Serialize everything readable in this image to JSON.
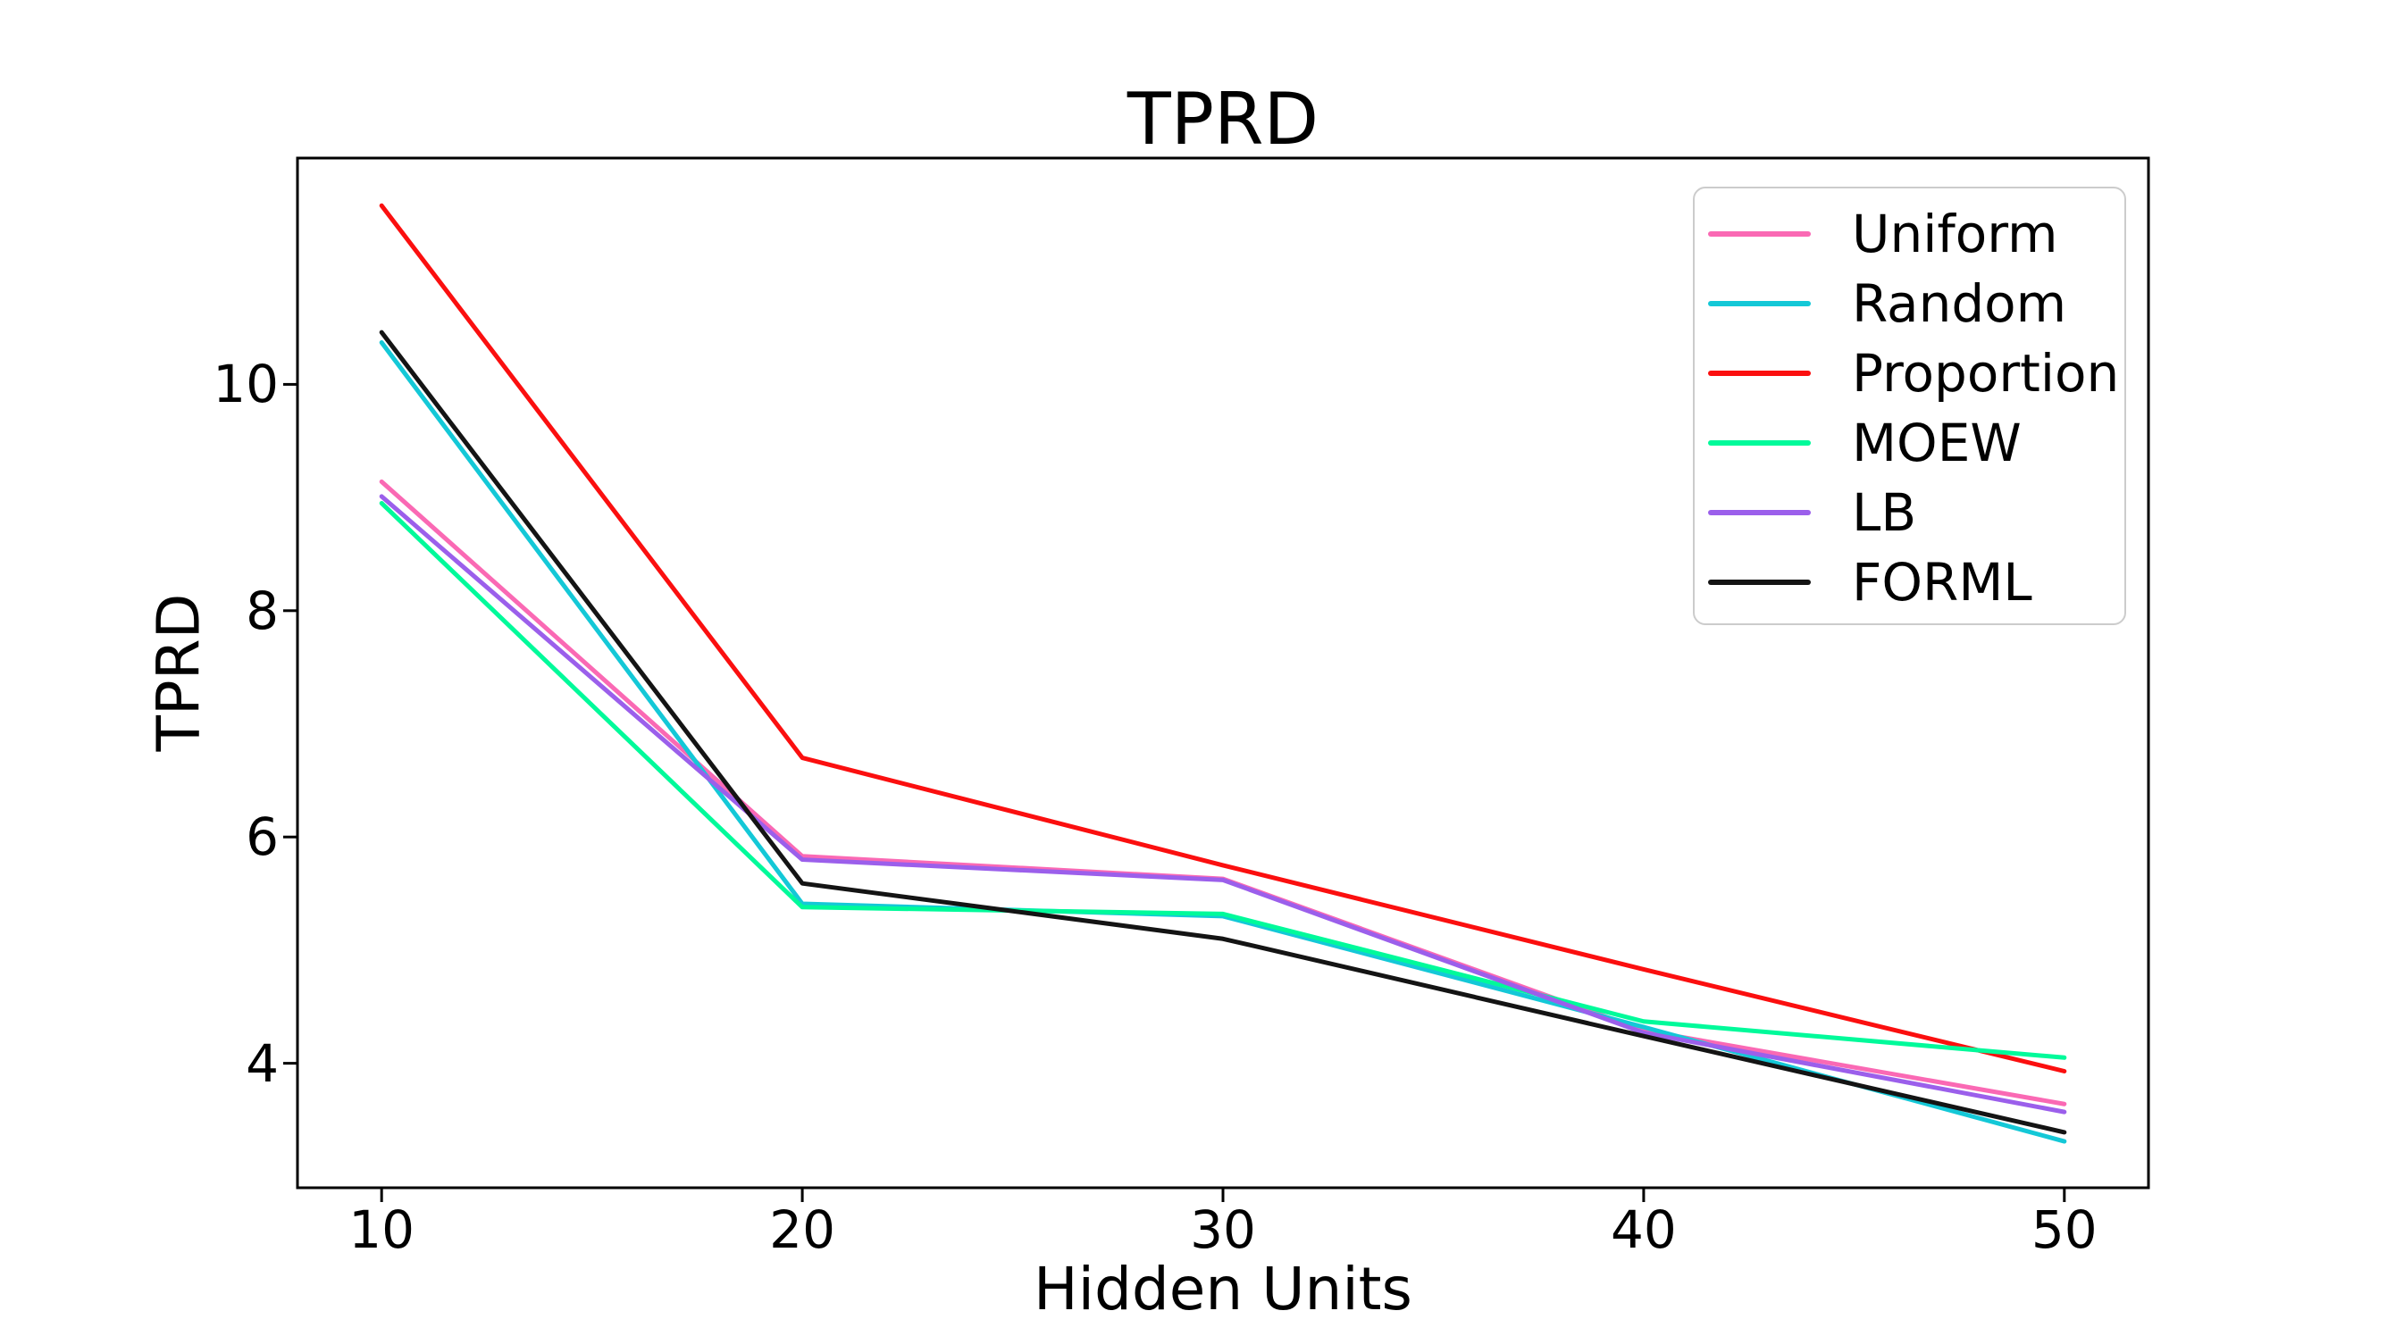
{
  "chart_data": {
    "type": "line",
    "title": "TPRD",
    "xlabel": "Hidden Units",
    "ylabel": "TPRD",
    "x": [
      10,
      20,
      30,
      40,
      50
    ],
    "xlim": [
      8,
      52
    ],
    "ylim": [
      2.9,
      12.0
    ],
    "xticks": [
      10,
      20,
      30,
      40,
      50
    ],
    "yticks": [
      4,
      6,
      8,
      10
    ],
    "grid": false,
    "legend_position": "upper right",
    "axis_color": "#000000",
    "series": [
      {
        "name": "Uniform",
        "color": "#fa69b4",
        "values": [
          9.14,
          5.83,
          5.63,
          4.29,
          3.64
        ]
      },
      {
        "name": "Random",
        "color": "#14c8d7",
        "values": [
          10.37,
          5.41,
          5.3,
          4.32,
          3.31
        ]
      },
      {
        "name": "Proportion",
        "color": "#fb0f0f",
        "values": [
          11.58,
          6.7,
          5.75,
          4.83,
          3.93
        ]
      },
      {
        "name": "MOEW",
        "color": "#00fa9a",
        "values": [
          8.95,
          5.38,
          5.32,
          4.37,
          4.05
        ]
      },
      {
        "name": "LB",
        "color": "#9b5feb",
        "values": [
          9.01,
          5.8,
          5.62,
          4.27,
          3.57
        ]
      },
      {
        "name": "FORML",
        "color": "#141414",
        "values": [
          10.46,
          5.59,
          5.1,
          4.24,
          3.39
        ]
      }
    ]
  }
}
